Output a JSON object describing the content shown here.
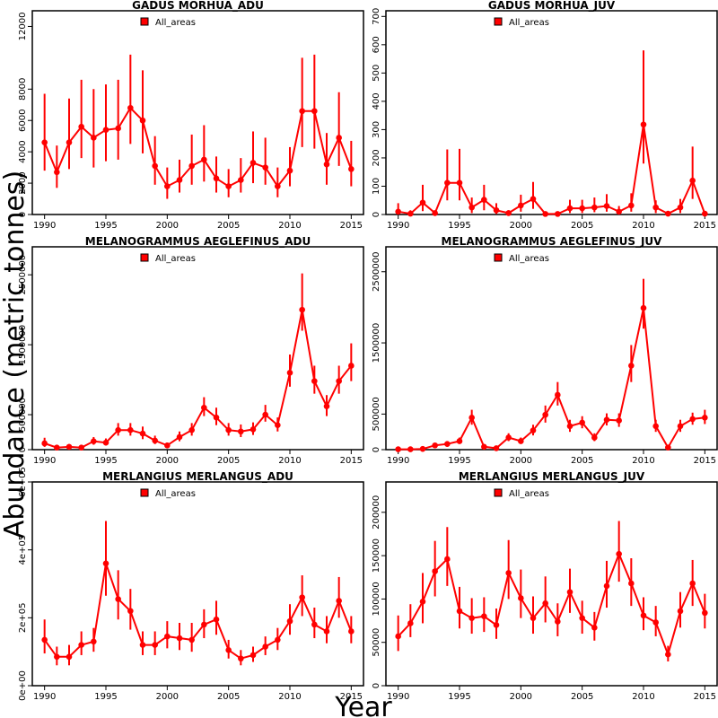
{
  "figure": {
    "ylabel": "Abundance (metric tonnes)",
    "xlabel": "Year",
    "legend_label": "All_areas",
    "series_color": "#ff0000"
  },
  "chart_data": [
    {
      "type": "line",
      "title": "GADUS MORHUA_ADU",
      "x": [
        1990,
        1991,
        1992,
        1993,
        1994,
        1995,
        1996,
        1997,
        1998,
        1999,
        2000,
        2001,
        2002,
        2003,
        2004,
        2005,
        2006,
        2007,
        2008,
        2009,
        2010,
        2011,
        2012,
        2013,
        2014,
        2015
      ],
      "values": [
        4600,
        2700,
        4600,
        5600,
        4900,
        5400,
        5500,
        6800,
        6000,
        3100,
        1800,
        2200,
        3100,
        3500,
        2300,
        1800,
        2200,
        3300,
        3000,
        1800,
        2800,
        6600,
        6600,
        3200,
        4900,
        2900
      ],
      "lower": [
        2800,
        1700,
        2900,
        3600,
        3000,
        3400,
        3500,
        4500,
        3900,
        1900,
        1000,
        1400,
        1900,
        2100,
        1400,
        1100,
        1400,
        2000,
        1900,
        1100,
        1800,
        4300,
        4200,
        1900,
        3100,
        1800
      ],
      "upper": [
        7700,
        4400,
        7400,
        8600,
        8000,
        8300,
        8600,
        10200,
        9200,
        5000,
        3000,
        3500,
        5100,
        5700,
        3700,
        2900,
        3600,
        5300,
        4900,
        3000,
        4300,
        10000,
        10200,
        5200,
        7800,
        4700
      ],
      "xlim": [
        1989,
        2016
      ],
      "ylim": [
        0,
        13000
      ],
      "yticks": [
        "0",
        "2000",
        "4000",
        "6000",
        "8000",
        "12000"
      ],
      "ytick_values": [
        0,
        2000,
        4000,
        6000,
        8000,
        12000
      ],
      "xticks": [
        "1990",
        "1995",
        "2000",
        "2005",
        "2010",
        "2015"
      ],
      "xtick_values": [
        1990,
        1995,
        2000,
        2005,
        2010,
        2015
      ],
      "legend": "top-left"
    },
    {
      "type": "line",
      "title": "GADUS MORHUA_JUV",
      "x": [
        1990,
        1991,
        1992,
        1993,
        1994,
        1995,
        1996,
        1997,
        1998,
        1999,
        2000,
        2001,
        2002,
        2003,
        2004,
        2005,
        2006,
        2007,
        2008,
        2009,
        2010,
        2011,
        2012,
        2013,
        2014,
        2015
      ],
      "values": [
        10,
        3,
        42,
        5,
        112,
        112,
        25,
        52,
        15,
        5,
        32,
        55,
        2,
        2,
        22,
        22,
        25,
        30,
        10,
        32,
        318,
        25,
        3,
        25,
        120,
        3
      ],
      "lower": [
        0,
        0,
        12,
        0,
        50,
        50,
        5,
        15,
        2,
        0,
        10,
        20,
        0,
        0,
        5,
        5,
        8,
        10,
        2,
        10,
        180,
        5,
        0,
        5,
        55,
        0
      ],
      "upper": [
        40,
        15,
        105,
        12,
        230,
        232,
        60,
        105,
        40,
        15,
        70,
        115,
        8,
        8,
        52,
        52,
        60,
        72,
        30,
        75,
        580,
        50,
        10,
        55,
        240,
        10
      ],
      "xlim": [
        1989,
        2016
      ],
      "ylim": [
        0,
        720
      ],
      "yticks": [
        "0",
        "100",
        "200",
        "300",
        "400",
        "500",
        "600",
        "700"
      ],
      "ytick_values": [
        0,
        100,
        200,
        300,
        400,
        500,
        600,
        700
      ],
      "xticks": [
        "1990",
        "1995",
        "2000",
        "2005",
        "2010",
        "2015"
      ],
      "xtick_values": [
        1990,
        1995,
        2000,
        2005,
        2010,
        2015
      ],
      "legend": "top-left"
    },
    {
      "type": "line",
      "title": "MELANOGRAMMUS AEGLEFINUS_ADU",
      "x": [
        1990,
        1991,
        1992,
        1993,
        1994,
        1995,
        1996,
        1997,
        1998,
        1999,
        2000,
        2001,
        2002,
        2003,
        2004,
        2005,
        2006,
        2007,
        2008,
        2009,
        2010,
        2011,
        2012,
        2013,
        2014,
        2015
      ],
      "values": [
        90000,
        30000,
        40000,
        30000,
        120000,
        100000,
        280000,
        280000,
        230000,
        130000,
        60000,
        180000,
        280000,
        600000,
        460000,
        280000,
        260000,
        290000,
        500000,
        350000,
        1100000,
        2000000,
        980000,
        620000,
        980000,
        1200000
      ],
      "lower": [
        40000,
        10000,
        15000,
        10000,
        70000,
        60000,
        200000,
        200000,
        150000,
        80000,
        30000,
        120000,
        200000,
        480000,
        350000,
        200000,
        180000,
        210000,
        400000,
        260000,
        900000,
        1700000,
        800000,
        480000,
        800000,
        980000
      ],
      "upper": [
        170000,
        60000,
        80000,
        60000,
        180000,
        160000,
        380000,
        380000,
        330000,
        200000,
        100000,
        260000,
        380000,
        750000,
        600000,
        380000,
        360000,
        390000,
        640000,
        460000,
        1360000,
        2520000,
        1200000,
        780000,
        1200000,
        1520000
      ],
      "xlim": [
        1989,
        2016
      ],
      "ylim": [
        0,
        2900000
      ],
      "yticks": [
        "0",
        "500000",
        "1500000",
        "2500000"
      ],
      "ytick_values": [
        0,
        500000,
        1500000,
        2500000
      ],
      "xticks": [
        "1990",
        "1995",
        "2000",
        "2005",
        "2010",
        "2015"
      ],
      "xtick_values": [
        1990,
        1995,
        2000,
        2005,
        2010,
        2015
      ],
      "legend": "top-left"
    },
    {
      "type": "line",
      "title": "MELANOGRAMMUS AEGLEFINUS_JUV",
      "x": [
        1990,
        1991,
        1992,
        1993,
        1994,
        1995,
        1996,
        1997,
        1998,
        1999,
        2000,
        2001,
        2002,
        2003,
        2004,
        2005,
        2006,
        2007,
        2008,
        2009,
        2010,
        2011,
        2012,
        2013,
        2014,
        2015
      ],
      "values": [
        5000,
        5000,
        10000,
        60000,
        80000,
        120000,
        450000,
        40000,
        20000,
        170000,
        120000,
        270000,
        490000,
        770000,
        330000,
        380000,
        170000,
        420000,
        410000,
        1180000,
        1990000,
        330000,
        30000,
        330000,
        430000,
        450000
      ],
      "lower": [
        0,
        0,
        2000,
        30000,
        50000,
        80000,
        350000,
        15000,
        5000,
        120000,
        80000,
        200000,
        380000,
        620000,
        250000,
        300000,
        120000,
        340000,
        320000,
        950000,
        1700000,
        250000,
        5000,
        250000,
        350000,
        360000
      ],
      "upper": [
        12000,
        12000,
        20000,
        90000,
        120000,
        170000,
        560000,
        70000,
        40000,
        230000,
        170000,
        350000,
        620000,
        950000,
        420000,
        470000,
        230000,
        510000,
        510000,
        1470000,
        2400000,
        420000,
        60000,
        420000,
        520000,
        560000
      ],
      "xlim": [
        1989,
        2016
      ],
      "ylim": [
        0,
        2850000
      ],
      "yticks": [
        "0",
        "500000",
        "1500000",
        "2500000"
      ],
      "ytick_values": [
        0,
        500000,
        1500000,
        2500000
      ],
      "xticks": [
        "1990",
        "1995",
        "2000",
        "2005",
        "2010",
        "2015"
      ],
      "xtick_values": [
        1990,
        1995,
        2000,
        2005,
        2010,
        2015
      ],
      "legend": "top-left"
    },
    {
      "type": "line",
      "title": "MERLANGIUS MERLANGUS_ADU",
      "x": [
        1990,
        1991,
        1992,
        1993,
        1994,
        1995,
        1996,
        1997,
        1998,
        1999,
        2000,
        2001,
        2002,
        2003,
        2004,
        2005,
        2006,
        2007,
        2008,
        2009,
        2010,
        2011,
        2012,
        2013,
        2014,
        2015
      ],
      "values": [
        135000,
        85000,
        85000,
        120000,
        130000,
        360000,
        255000,
        220000,
        120000,
        120000,
        145000,
        140000,
        135000,
        180000,
        195000,
        105000,
        80000,
        90000,
        115000,
        135000,
        190000,
        260000,
        180000,
        160000,
        250000,
        160000
      ],
      "lower": [
        95000,
        60000,
        60000,
        90000,
        100000,
        265000,
        195000,
        165000,
        90000,
        90000,
        110000,
        105000,
        100000,
        140000,
        150000,
        80000,
        60000,
        70000,
        90000,
        105000,
        150000,
        205000,
        140000,
        125000,
        200000,
        125000
      ],
      "upper": [
        195000,
        115000,
        120000,
        160000,
        170000,
        485000,
        340000,
        285000,
        160000,
        160000,
        190000,
        185000,
        185000,
        225000,
        250000,
        135000,
        105000,
        115000,
        145000,
        170000,
        240000,
        325000,
        230000,
        205000,
        320000,
        205000
      ],
      "xlim": [
        1989,
        2016
      ],
      "ylim": [
        0,
        600000
      ],
      "yticks": [
        "0e+00",
        "2e+05",
        "4e+05",
        "6e+05"
      ],
      "ytick_values": [
        0,
        200000,
        400000,
        600000
      ],
      "xticks": [
        "1990",
        "1995",
        "2000",
        "2005",
        "2010",
        "2015"
      ],
      "xtick_values": [
        1990,
        1995,
        2000,
        2005,
        2010,
        2015
      ],
      "legend": "top-left"
    },
    {
      "type": "line",
      "title": "MERLANGIUS MERLANGUS_JUV",
      "x": [
        1990,
        1991,
        1992,
        1993,
        1994,
        1995,
        1996,
        1997,
        1998,
        1999,
        2000,
        2001,
        2002,
        2003,
        2004,
        2005,
        2006,
        2007,
        2008,
        2009,
        2010,
        2011,
        2012,
        2013,
        2014,
        2015
      ],
      "values": [
        57000,
        72000,
        97000,
        132000,
        146000,
        86000,
        78000,
        80000,
        70000,
        130000,
        101000,
        78000,
        95000,
        74000,
        108000,
        78000,
        67000,
        115000,
        152000,
        118000,
        81000,
        73000,
        36000,
        86000,
        118000,
        84000
      ],
      "lower": [
        40000,
        56000,
        72000,
        103000,
        115000,
        66000,
        60000,
        62000,
        54000,
        100000,
        78000,
        60000,
        73000,
        57000,
        84000,
        60000,
        52000,
        90000,
        120000,
        92000,
        64000,
        57000,
        28000,
        67000,
        92000,
        66000
      ],
      "upper": [
        81000,
        94000,
        130000,
        167000,
        183000,
        114000,
        101000,
        102000,
        89000,
        168000,
        134000,
        103000,
        126000,
        95000,
        135000,
        98000,
        85000,
        144000,
        190000,
        147000,
        102000,
        92000,
        46000,
        108000,
        145000,
        106000
      ],
      "xlim": [
        1989,
        2016
      ],
      "ylim": [
        0,
        235000
      ],
      "yticks": [
        "0",
        "50000",
        "100000",
        "150000",
        "200000"
      ],
      "ytick_values": [
        0,
        50000,
        100000,
        150000,
        200000
      ],
      "xticks": [
        "1990",
        "1995",
        "2000",
        "2005",
        "2010",
        "2015"
      ],
      "xtick_values": [
        1990,
        1995,
        2000,
        2005,
        2010,
        2015
      ],
      "legend": "top-left"
    }
  ]
}
